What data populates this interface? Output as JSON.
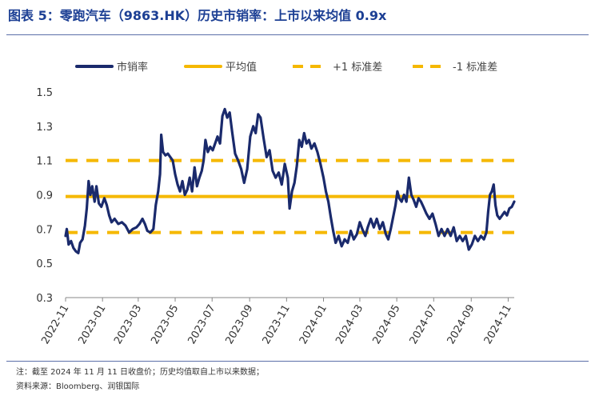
{
  "title": "图表 5：零跑汽车（9863.HK）历史市销率：上市以来均值 0.9x",
  "notes": [
    "注：截至 2024 年 11 月 11 日收盘价；历史均值取自上市以来数据；",
    "资料来源：Bloomberg、润银国际"
  ],
  "colors": {
    "series": "#1a2a6c",
    "mean": "#f5b800",
    "title": "#1c3f94"
  },
  "chart_data": {
    "type": "line",
    "title": "",
    "xlabel": "",
    "ylabel": "",
    "ylim": [
      0.3,
      1.5
    ],
    "yticks": [
      "0.3",
      "0.5",
      "0.7",
      "0.9",
      "1.1",
      "1.3",
      "1.5"
    ],
    "xlim": [
      "2022-11-01",
      "2024-11-11"
    ],
    "xticks": [
      "2022-11",
      "2023-01",
      "2023-03",
      "2023-05",
      "2023-07",
      "2023-09",
      "2023-11",
      "2024-01",
      "2024-03",
      "2024-05",
      "2024-07",
      "2024-09",
      "2024-11"
    ],
    "legend": {
      "placement": "top",
      "entries": [
        "市销率",
        "平均值",
        "+1 标准差",
        "-1 标准差"
      ]
    },
    "hlines": [
      {
        "name": "平均值",
        "value": 0.89,
        "style": "solid"
      },
      {
        "name": "+1 标准差",
        "value": 1.1,
        "style": "dashed"
      },
      {
        "name": "-1 标准差",
        "value": 0.68,
        "style": "dashed"
      }
    ],
    "series": [
      {
        "name": "市销率",
        "points": [
          [
            "2022-11-01",
            0.66
          ],
          [
            "2022-11-03",
            0.7
          ],
          [
            "2022-11-06",
            0.61
          ],
          [
            "2022-11-10",
            0.63
          ],
          [
            "2022-11-14",
            0.59
          ],
          [
            "2022-11-18",
            0.57
          ],
          [
            "2022-11-22",
            0.56
          ],
          [
            "2022-11-25",
            0.62
          ],
          [
            "2022-11-29",
            0.64
          ],
          [
            "2022-12-03",
            0.72
          ],
          [
            "2022-12-06",
            0.82
          ],
          [
            "2022-12-09",
            0.98
          ],
          [
            "2022-12-12",
            0.9
          ],
          [
            "2022-12-15",
            0.95
          ],
          [
            "2022-12-19",
            0.86
          ],
          [
            "2022-12-22",
            0.95
          ],
          [
            "2022-12-26",
            0.85
          ],
          [
            "2022-12-30",
            0.83
          ],
          [
            "2023-01-04",
            0.88
          ],
          [
            "2023-01-08",
            0.84
          ],
          [
            "2023-01-12",
            0.78
          ],
          [
            "2023-01-16",
            0.74
          ],
          [
            "2023-01-21",
            0.76
          ],
          [
            "2023-01-27",
            0.73
          ],
          [
            "2023-02-02",
            0.74
          ],
          [
            "2023-02-08",
            0.72
          ],
          [
            "2023-02-14",
            0.68
          ],
          [
            "2023-02-20",
            0.7
          ],
          [
            "2023-02-26",
            0.71
          ],
          [
            "2023-03-03",
            0.73
          ],
          [
            "2023-03-08",
            0.76
          ],
          [
            "2023-03-12",
            0.73
          ],
          [
            "2023-03-16",
            0.69
          ],
          [
            "2023-03-21",
            0.68
          ],
          [
            "2023-03-26",
            0.7
          ],
          [
            "2023-03-30",
            0.84
          ],
          [
            "2023-04-03",
            0.92
          ],
          [
            "2023-04-06",
            1.02
          ],
          [
            "2023-04-08",
            1.25
          ],
          [
            "2023-04-11",
            1.15
          ],
          [
            "2023-04-15",
            1.13
          ],
          [
            "2023-04-19",
            1.14
          ],
          [
            "2023-04-23",
            1.12
          ],
          [
            "2023-04-27",
            1.1
          ],
          [
            "2023-05-01",
            1.02
          ],
          [
            "2023-05-05",
            0.96
          ],
          [
            "2023-05-09",
            0.92
          ],
          [
            "2023-05-13",
            0.98
          ],
          [
            "2023-05-17",
            0.9
          ],
          [
            "2023-05-21",
            0.93
          ],
          [
            "2023-05-25",
            1.0
          ],
          [
            "2023-05-29",
            0.92
          ],
          [
            "2023-06-02",
            1.06
          ],
          [
            "2023-06-06",
            0.95
          ],
          [
            "2023-06-10",
            1.0
          ],
          [
            "2023-06-14",
            1.04
          ],
          [
            "2023-06-17",
            1.1
          ],
          [
            "2023-06-20",
            1.22
          ],
          [
            "2023-06-24",
            1.15
          ],
          [
            "2023-06-28",
            1.18
          ],
          [
            "2023-07-02",
            1.16
          ],
          [
            "2023-07-06",
            1.2
          ],
          [
            "2023-07-10",
            1.24
          ],
          [
            "2023-07-14",
            1.2
          ],
          [
            "2023-07-18",
            1.36
          ],
          [
            "2023-07-22",
            1.4
          ],
          [
            "2023-07-26",
            1.35
          ],
          [
            "2023-07-30",
            1.38
          ],
          [
            "2023-08-03",
            1.27
          ],
          [
            "2023-08-08",
            1.14
          ],
          [
            "2023-08-13",
            1.1
          ],
          [
            "2023-08-18",
            1.05
          ],
          [
            "2023-08-23",
            0.97
          ],
          [
            "2023-08-28",
            1.05
          ],
          [
            "2023-09-02",
            1.24
          ],
          [
            "2023-09-07",
            1.3
          ],
          [
            "2023-09-11",
            1.26
          ],
          [
            "2023-09-15",
            1.37
          ],
          [
            "2023-09-19",
            1.35
          ],
          [
            "2023-09-24",
            1.23
          ],
          [
            "2023-09-29",
            1.12
          ],
          [
            "2023-10-04",
            1.16
          ],
          [
            "2023-10-09",
            1.04
          ],
          [
            "2023-10-14",
            1.0
          ],
          [
            "2023-10-19",
            1.03
          ],
          [
            "2023-10-24",
            0.96
          ],
          [
            "2023-10-29",
            1.08
          ],
          [
            "2023-11-03",
            1.0
          ],
          [
            "2023-11-06",
            0.82
          ],
          [
            "2023-11-10",
            0.92
          ],
          [
            "2023-11-14",
            0.97
          ],
          [
            "2023-11-18",
            1.07
          ],
          [
            "2023-11-22",
            1.22
          ],
          [
            "2023-11-26",
            1.18
          ],
          [
            "2023-11-30",
            1.26
          ],
          [
            "2023-12-04",
            1.2
          ],
          [
            "2023-12-08",
            1.22
          ],
          [
            "2023-12-12",
            1.17
          ],
          [
            "2023-12-17",
            1.2
          ],
          [
            "2023-12-22",
            1.15
          ],
          [
            "2023-12-27",
            1.08
          ],
          [
            "2024-01-01",
            1.0
          ],
          [
            "2024-01-05",
            0.92
          ],
          [
            "2024-01-09",
            0.86
          ],
          [
            "2024-01-13",
            0.77
          ],
          [
            "2024-01-17",
            0.69
          ],
          [
            "2024-01-21",
            0.62
          ],
          [
            "2024-01-26",
            0.66
          ],
          [
            "2024-01-31",
            0.6
          ],
          [
            "2024-02-05",
            0.64
          ],
          [
            "2024-02-10",
            0.62
          ],
          [
            "2024-02-15",
            0.69
          ],
          [
            "2024-02-20",
            0.64
          ],
          [
            "2024-02-25",
            0.67
          ],
          [
            "2024-03-01",
            0.74
          ],
          [
            "2024-03-05",
            0.7
          ],
          [
            "2024-03-10",
            0.66
          ],
          [
            "2024-03-14",
            0.71
          ],
          [
            "2024-03-19",
            0.76
          ],
          [
            "2024-03-24",
            0.71
          ],
          [
            "2024-03-29",
            0.76
          ],
          [
            "2024-04-03",
            0.7
          ],
          [
            "2024-04-08",
            0.74
          ],
          [
            "2024-04-13",
            0.67
          ],
          [
            "2024-04-17",
            0.64
          ],
          [
            "2024-04-21",
            0.7
          ],
          [
            "2024-04-25",
            0.77
          ],
          [
            "2024-04-29",
            0.84
          ],
          [
            "2024-05-02",
            0.92
          ],
          [
            "2024-05-05",
            0.88
          ],
          [
            "2024-05-09",
            0.86
          ],
          [
            "2024-05-13",
            0.9
          ],
          [
            "2024-05-17",
            0.86
          ],
          [
            "2024-05-21",
            1.0
          ],
          [
            "2024-05-25",
            0.9
          ],
          [
            "2024-05-29",
            0.87
          ],
          [
            "2024-06-02",
            0.83
          ],
          [
            "2024-06-06",
            0.88
          ],
          [
            "2024-06-10",
            0.86
          ],
          [
            "2024-06-14",
            0.83
          ],
          [
            "2024-06-19",
            0.79
          ],
          [
            "2024-06-24",
            0.76
          ],
          [
            "2024-06-29",
            0.79
          ],
          [
            "2024-07-04",
            0.73
          ],
          [
            "2024-07-09",
            0.66
          ],
          [
            "2024-07-14",
            0.7
          ],
          [
            "2024-07-19",
            0.66
          ],
          [
            "2024-07-24",
            0.7
          ],
          [
            "2024-07-29",
            0.66
          ],
          [
            "2024-08-03",
            0.71
          ],
          [
            "2024-08-08",
            0.63
          ],
          [
            "2024-08-13",
            0.66
          ],
          [
            "2024-08-18",
            0.63
          ],
          [
            "2024-08-23",
            0.66
          ],
          [
            "2024-08-28",
            0.58
          ],
          [
            "2024-09-02",
            0.61
          ],
          [
            "2024-09-07",
            0.66
          ],
          [
            "2024-09-12",
            0.63
          ],
          [
            "2024-09-17",
            0.66
          ],
          [
            "2024-09-22",
            0.64
          ],
          [
            "2024-09-26",
            0.68
          ],
          [
            "2024-09-29",
            0.8
          ],
          [
            "2024-10-02",
            0.9
          ],
          [
            "2024-10-05",
            0.92
          ],
          [
            "2024-10-08",
            0.96
          ],
          [
            "2024-10-11",
            0.84
          ],
          [
            "2024-10-14",
            0.78
          ],
          [
            "2024-10-18",
            0.76
          ],
          [
            "2024-10-22",
            0.78
          ],
          [
            "2024-10-26",
            0.8
          ],
          [
            "2024-10-30",
            0.78
          ],
          [
            "2024-11-03",
            0.82
          ],
          [
            "2024-11-07",
            0.83
          ],
          [
            "2024-11-11",
            0.86
          ]
        ]
      }
    ]
  }
}
